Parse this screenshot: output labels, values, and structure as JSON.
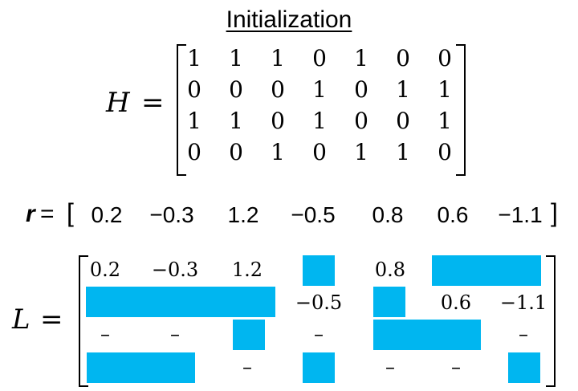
{
  "title": "Initialization",
  "H": {
    "label": "H",
    "equals": "=",
    "rows": [
      [
        "1",
        "1",
        "1",
        "0",
        "1",
        "0",
        "0"
      ],
      [
        "0",
        "0",
        "0",
        "1",
        "0",
        "1",
        "1"
      ],
      [
        "1",
        "1",
        "0",
        "1",
        "0",
        "0",
        "1"
      ],
      [
        "0",
        "0",
        "1",
        "0",
        "1",
        "1",
        "0"
      ]
    ]
  },
  "r": {
    "label": "r",
    "equals": "=",
    "open": "[",
    "close": "]",
    "values": [
      "0.2",
      "−0.3",
      "1.2",
      "−0.5",
      "0.8",
      "0.6",
      "−1.1"
    ]
  },
  "L": {
    "label": "L",
    "equals": "=",
    "rows": [
      [
        "0.2",
        "−0.3",
        "1.2",
        "",
        "0.8",
        "",
        ""
      ],
      [
        "",
        "",
        "",
        "−0.5",
        "",
        "0.6",
        "−1.1"
      ],
      [
        "–",
        "–",
        "",
        "–",
        "",
        "",
        "–"
      ],
      [
        "",
        "",
        "–",
        "",
        "–",
        "–",
        ""
      ]
    ],
    "block_color": "#00b6f0"
  }
}
